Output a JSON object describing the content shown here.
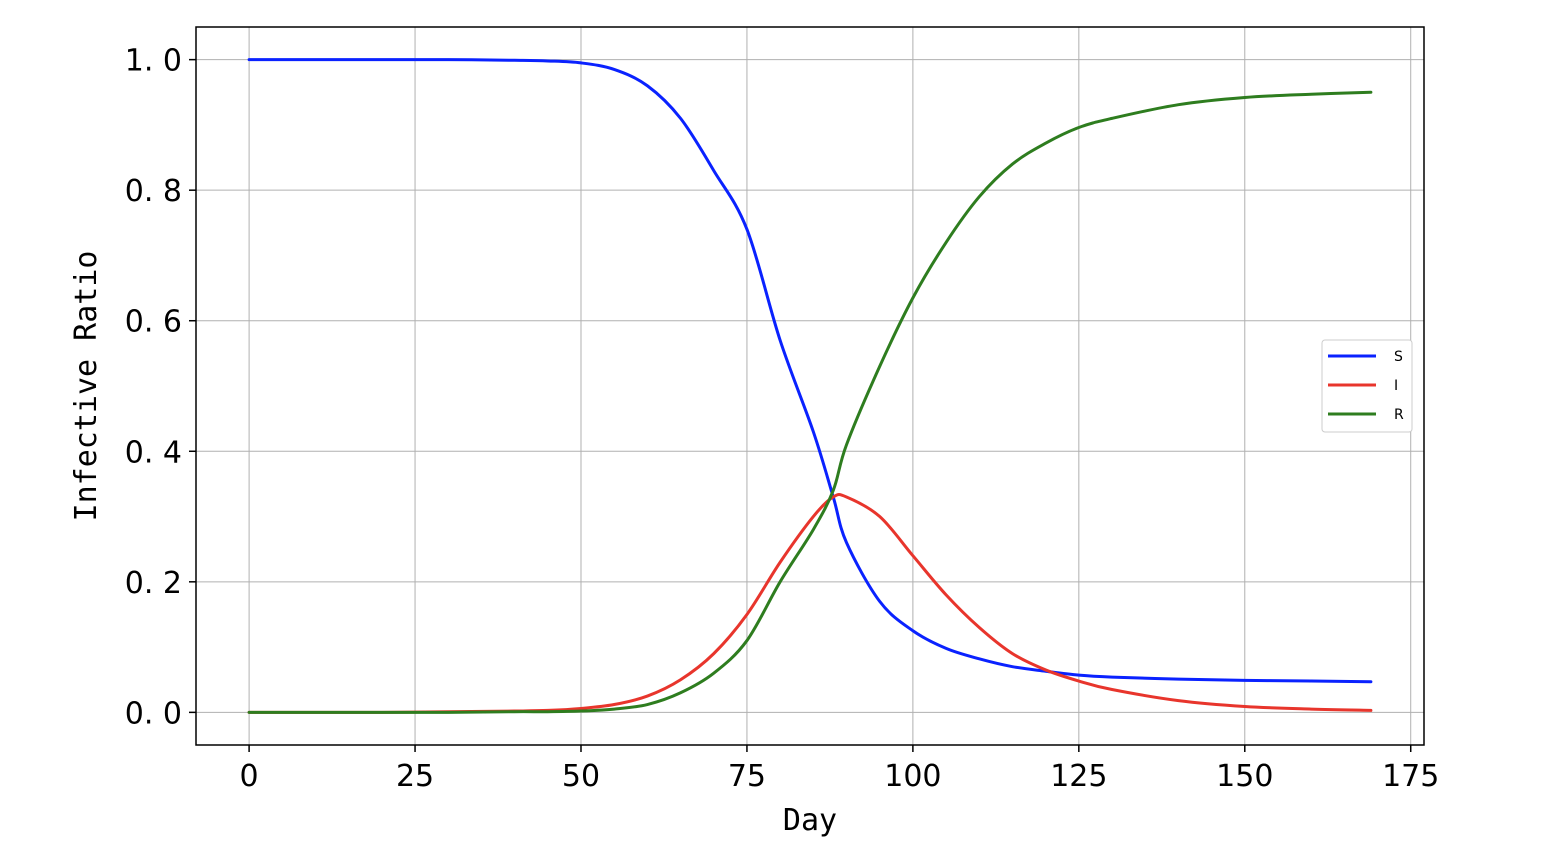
{
  "chart_data": {
    "type": "line",
    "title": "",
    "xlabel": "Day",
    "ylabel": "Infective Ratio",
    "xlim": [
      -8,
      177
    ],
    "ylim": [
      -0.05,
      1.05
    ],
    "xticks": [
      0,
      25,
      50,
      75,
      100,
      125,
      150,
      175
    ],
    "yticks": [
      0.0,
      0.2,
      0.4,
      0.6,
      0.8,
      1.0
    ],
    "xtick_labels": [
      "0",
      "25",
      "50",
      "75",
      "100",
      "125",
      "150",
      "175"
    ],
    "ytick_labels": [
      "0. 0",
      "0. 2",
      "0. 4",
      "0. 6",
      "0. 8",
      "1. 0"
    ],
    "grid": true,
    "legend_position": "center-right",
    "x": [
      0,
      10,
      20,
      30,
      40,
      45,
      50,
      55,
      60,
      65,
      70,
      75,
      80,
      85,
      88,
      90,
      95,
      100,
      105,
      110,
      115,
      120,
      125,
      130,
      140,
      150,
      160,
      169
    ],
    "series": [
      {
        "name": "S",
        "color": "#0a22ff",
        "values": [
          1.0,
          1.0,
          1.0,
          1.0,
          0.999,
          0.998,
          0.995,
          0.985,
          0.96,
          0.91,
          0.83,
          0.74,
          0.57,
          0.43,
          0.33,
          0.26,
          0.17,
          0.125,
          0.098,
          0.082,
          0.07,
          0.063,
          0.057,
          0.054,
          0.051,
          0.049,
          0.048,
          0.047
        ]
      },
      {
        "name": "I",
        "color": "#e8352c",
        "values": [
          0.0,
          0.0,
          0.0,
          0.001,
          0.002,
          0.003,
          0.006,
          0.012,
          0.025,
          0.05,
          0.09,
          0.15,
          0.23,
          0.3,
          0.33,
          0.33,
          0.3,
          0.24,
          0.18,
          0.13,
          0.09,
          0.065,
          0.048,
          0.035,
          0.018,
          0.009,
          0.005,
          0.003
        ]
      },
      {
        "name": "R",
        "color": "#2e7d1f",
        "values": [
          0.0,
          0.0,
          0.0,
          0.0,
          0.001,
          0.001,
          0.002,
          0.005,
          0.012,
          0.03,
          0.06,
          0.11,
          0.2,
          0.28,
          0.34,
          0.41,
          0.53,
          0.635,
          0.72,
          0.79,
          0.84,
          0.872,
          0.896,
          0.91,
          0.931,
          0.942,
          0.947,
          0.95
        ]
      }
    ]
  }
}
